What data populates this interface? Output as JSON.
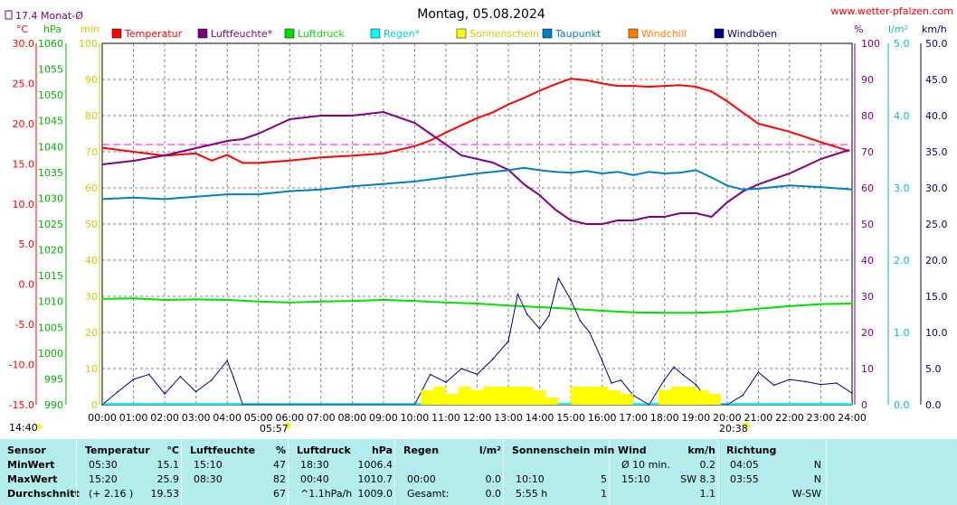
{
  "header": {
    "title": "Montag, 05.08.2024",
    "source": "www.wetter-pfalzen.com",
    "month_avg": "17.4 Monat-Ø"
  },
  "units": {
    "temp": "°C",
    "pressure": "hPa",
    "minutes": "min",
    "humidity": "%",
    "rain": "l/m²",
    "wind": "km/h"
  },
  "legend": [
    {
      "label": "Temperatur",
      "color": "#ff0000"
    },
    {
      "label": "Luftfeuchte*",
      "color": "#800080"
    },
    {
      "label": "Luftdruck",
      "color": "#00e000"
    },
    {
      "label": "Regen*",
      "color": "#00ffff"
    },
    {
      "label": "Sonnenschein",
      "color": "#ffff00"
    },
    {
      "label": "Taupunkt",
      "color": "#0080c0"
    },
    {
      "label": "Windchill",
      "color": "#ff8000"
    },
    {
      "label": "Windböen",
      "color": "#000080"
    }
  ],
  "sunrise": "05:57",
  "sunset": "20:38",
  "start_time": "14:40",
  "chart_data": {
    "type": "line",
    "title": "Montag, 05.08.2024",
    "x_ticks": [
      "00:00",
      "01:00",
      "02:00",
      "03:00",
      "04:00",
      "05:00",
      "06:00",
      "07:00",
      "08:00",
      "09:00",
      "10:00",
      "11:00",
      "12:00",
      "13:00",
      "14:00",
      "15:00",
      "16:00",
      "17:00",
      "18:00",
      "19:00",
      "20:00",
      "21:00",
      "22:00",
      "23:00",
      "24:00"
    ],
    "axes": {
      "temp": {
        "label": "°C",
        "ticks": [
          "30.0",
          "25.0",
          "20.0",
          "15.0",
          "10.0",
          "5.0",
          "0.0",
          "-5.0",
          "-10.0",
          "-15.0"
        ],
        "range": [
          -15,
          30
        ]
      },
      "pressure": {
        "label": "hPa",
        "ticks": [
          "1060",
          "1055",
          "1050",
          "1045",
          "1040",
          "1035",
          "1030",
          "1025",
          "1020",
          "1015",
          "1010",
          "1005",
          "1000",
          "995",
          "990"
        ],
        "range": [
          990,
          1060
        ]
      },
      "minutes": {
        "label": "min",
        "ticks": [
          "100",
          "90",
          "80",
          "70",
          "60",
          "50",
          "40",
          "30",
          "20",
          "10",
          "0"
        ],
        "range": [
          0,
          100
        ]
      },
      "humidity": {
        "label": "%",
        "ticks": [
          "100",
          "90",
          "80",
          "70",
          "60",
          "50",
          "40",
          "30",
          "20",
          "10",
          "0"
        ],
        "range": [
          0,
          100
        ]
      },
      "rain": {
        "label": "l/m²",
        "ticks": [
          "5.0",
          "4.0",
          "3.0",
          "2.0",
          "1.0",
          "0.0"
        ],
        "range": [
          0,
          5
        ]
      },
      "wind": {
        "label": "km/h",
        "ticks": [
          "50.0",
          "45.0",
          "40.0",
          "35.0",
          "30.0",
          "25.0",
          "20.0",
          "15.0",
          "10.0",
          "5.0",
          "0.0"
        ],
        "range": [
          0,
          50
        ]
      }
    },
    "month_avg_temp": 17.4,
    "series": [
      {
        "name": "Temperatur",
        "axis": "temp",
        "x": [
          0,
          1,
          2,
          3,
          3.5,
          4,
          4.5,
          5,
          6,
          7,
          8,
          9,
          10,
          10.5,
          11,
          11.5,
          12,
          12.5,
          13,
          13.5,
          14,
          14.5,
          15,
          15.5,
          16,
          16.5,
          17,
          17.5,
          18,
          18.5,
          19,
          19.5,
          20,
          20.5,
          21,
          22,
          23,
          23.9
        ],
        "y": [
          17.0,
          16.5,
          16.0,
          16.3,
          15.4,
          16.1,
          15.1,
          15.1,
          15.4,
          15.8,
          16.0,
          16.3,
          17.2,
          17.9,
          18.9,
          19.8,
          20.7,
          21.4,
          22.4,
          23.2,
          24.1,
          24.9,
          25.6,
          25.4,
          25.0,
          24.7,
          24.7,
          24.6,
          24.7,
          24.8,
          24.6,
          24.0,
          22.8,
          21.4,
          20.0,
          19.0,
          17.7,
          16.6
        ]
      },
      {
        "name": "Luftfeuchte*",
        "axis": "humidity",
        "x": [
          0,
          1,
          2,
          3,
          4,
          4.5,
          5,
          5.5,
          6,
          7,
          8,
          9,
          10,
          10.5,
          11,
          11.5,
          12,
          12.5,
          13,
          13.5,
          14,
          14.5,
          15,
          15.5,
          16,
          16.5,
          17,
          17.5,
          18,
          18.5,
          19,
          19.5,
          20,
          20.5,
          21,
          22,
          23,
          23.9
        ],
        "y": [
          66.5,
          67.5,
          69,
          71,
          73,
          73.5,
          75,
          77,
          79,
          80,
          80,
          81,
          78,
          75,
          72,
          69,
          68,
          67,
          65,
          61,
          58,
          54,
          51,
          50,
          50,
          51,
          51,
          52,
          52,
          53,
          53,
          52,
          56,
          59,
          61,
          64,
          68,
          70.5
        ]
      },
      {
        "name": "Luftdruck",
        "axis": "pressure",
        "x": [
          0,
          1,
          2,
          3,
          4,
          5,
          6,
          7,
          8,
          9,
          10,
          11,
          12,
          13,
          14,
          15,
          16,
          17,
          18,
          19,
          20,
          21,
          22,
          23,
          24
        ],
        "y": [
          1010.5,
          1010.6,
          1010.3,
          1010.4,
          1010.3,
          1010.0,
          1009.8,
          1010.0,
          1010.1,
          1010.3,
          1010.1,
          1009.8,
          1009.6,
          1009.2,
          1008.9,
          1008.6,
          1008.2,
          1007.9,
          1007.8,
          1007.8,
          1008.0,
          1008.6,
          1009.1,
          1009.5,
          1009.6
        ]
      },
      {
        "name": "Taupunkt",
        "axis": "temp",
        "x": [
          0,
          1,
          2,
          3,
          4,
          5,
          6,
          7,
          8,
          9,
          10,
          11,
          12,
          12.5,
          13,
          13.5,
          14,
          14.5,
          15,
          15.5,
          16,
          16.5,
          17,
          17.5,
          18,
          18.5,
          19,
          19.5,
          20,
          20.5,
          21,
          22,
          23,
          24
        ],
        "y": [
          10.6,
          10.8,
          10.6,
          10.9,
          11.2,
          11.2,
          11.6,
          11.8,
          12.2,
          12.5,
          12.8,
          13.3,
          13.8,
          14.0,
          14.2,
          14.5,
          14.2,
          14.0,
          13.9,
          14.1,
          13.8,
          14.0,
          13.6,
          14.0,
          13.8,
          13.9,
          14.2,
          13.3,
          12.3,
          11.8,
          11.9,
          12.3,
          12.1,
          11.8
        ]
      },
      {
        "name": "Windböen",
        "axis": "wind",
        "x": [
          0,
          0.5,
          1,
          1.5,
          2,
          2.5,
          3,
          3.5,
          4,
          4.2,
          4.5,
          5,
          6,
          7,
          8,
          9,
          10,
          10.5,
          11,
          11.5,
          12,
          12.5,
          13,
          13.3,
          13.6,
          14,
          14.3,
          14.6,
          15,
          15.3,
          15.6,
          16,
          16.3,
          16.6,
          17,
          17.5,
          18,
          18.3,
          18.6,
          19,
          19.5,
          20,
          20.5,
          21,
          21.5,
          22,
          22.5,
          23,
          23.5,
          24
        ],
        "y": [
          0,
          1.8,
          3.5,
          4.2,
          1.5,
          3.9,
          1.8,
          3.4,
          6.1,
          3.8,
          0,
          0,
          0,
          0,
          0,
          0,
          0,
          4.2,
          3.1,
          5.0,
          4.2,
          6.3,
          8.8,
          15.3,
          12.5,
          10.5,
          12.3,
          17.5,
          14.5,
          11.6,
          10.0,
          6.1,
          3.0,
          3.4,
          1.3,
          0,
          3.5,
          5.2,
          4.1,
          2.8,
          0,
          0,
          1.3,
          4.5,
          2.7,
          3.5,
          3.2,
          2.8,
          3.0,
          1.6
        ]
      },
      {
        "name": "Sonnenschein",
        "axis": "minutes",
        "x": [
          10.2,
          10.6,
          11,
          11.4,
          11.8,
          12.2,
          12.6,
          13,
          13.4,
          13.8,
          14.2,
          14.6,
          15,
          15.4,
          15.8,
          16.2,
          16.6,
          17,
          17.4,
          17.8,
          18.2,
          18.6,
          19,
          19.4
        ],
        "y": [
          4,
          5,
          3,
          5,
          4,
          5,
          5,
          5,
          5,
          4,
          2,
          0,
          5,
          5,
          5,
          4,
          3,
          0,
          0,
          4,
          5,
          5,
          4,
          3
        ]
      }
    ]
  },
  "table": {
    "row_labels": [
      "Sensor",
      "MinWert",
      "MaxWert",
      "Durchschnitt"
    ],
    "columns": [
      {
        "header": "Temperatur",
        "unit": "°C",
        "rows": [
          [
            "05:30",
            "15.1"
          ],
          [
            "15:20",
            "25.9"
          ],
          [
            "(+ 2.16 )",
            "19.53"
          ]
        ]
      },
      {
        "header": "Luftfeuchte",
        "unit": "%",
        "rows": [
          [
            "15:10",
            "47"
          ],
          [
            "08:30",
            "82"
          ],
          [
            "",
            "67"
          ]
        ]
      },
      {
        "header": "Luftdruck",
        "unit": "hPa",
        "rows": [
          [
            "18:30",
            "1006.4"
          ],
          [
            "00:40",
            "1010.7"
          ],
          [
            "^1.1hPa/h",
            "1009.0"
          ]
        ]
      },
      {
        "header": "Regen",
        "unit": "l/m²",
        "rows": [
          [
            "",
            ""
          ],
          [
            "00:00",
            "0.0"
          ],
          [
            "Gesamt:",
            "0.0"
          ]
        ]
      },
      {
        "header": "Sonnenschein min",
        "unit": "",
        "rows": [
          [
            "",
            ""
          ],
          [
            "10:10",
            "5"
          ],
          [
            "5:55 h",
            "1"
          ]
        ]
      },
      {
        "header": "Wind",
        "unit": "km/h",
        "rows": [
          [
            "Ø 10 min.",
            "0.2"
          ],
          [
            "15:10",
            "SW 8.3"
          ],
          [
            "",
            "1.1"
          ]
        ]
      },
      {
        "header": "Richtung",
        "unit": "",
        "rows": [
          [
            "04:05",
            "N"
          ],
          [
            "03:55",
            "N"
          ],
          [
            "",
            "W-SW"
          ]
        ]
      }
    ]
  }
}
